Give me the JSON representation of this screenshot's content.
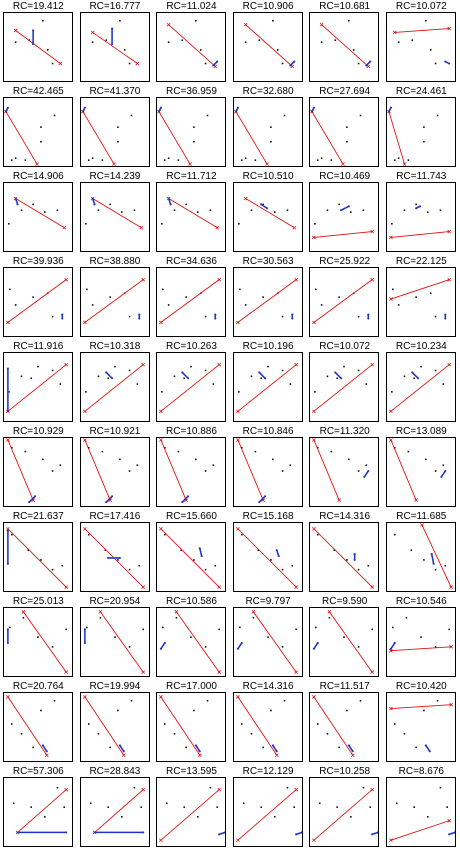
{
  "colors": {
    "fit": "#e01010",
    "residual": "#1e34c8",
    "point": "#000000"
  },
  "rc_values": [
    [
      "RC=19.412",
      "RC=16.777",
      "RC=11.024",
      "RC=10.906",
      "RC=10.681",
      "RC=10.072"
    ],
    [
      "RC=42.465",
      "RC=41.370",
      "RC=36.959",
      "RC=32.680",
      "RC=27.694",
      "RC=24.461"
    ],
    [
      "RC=14.906",
      "RC=14.239",
      "RC=11.712",
      "RC=10.510",
      "RC=10.469",
      "RC=11.743"
    ],
    [
      "RC=39.936",
      "RC=38.880",
      "RC=34.636",
      "RC=30.563",
      "RC=25.922",
      "RC=22.125"
    ],
    [
      "RC=11.916",
      "RC=10.318",
      "RC=10.263",
      "RC=10.196",
      "RC=10.072",
      "RC=10.234"
    ],
    [
      "RC=10.929",
      "RC=10.921",
      "RC=10.886",
      "RC=10.846",
      "RC=11.320",
      "RC=13.089"
    ],
    [
      "RC=21.637",
      "RC=17.416",
      "RC=15.660",
      "RC=15.168",
      "RC=14.316",
      "RC=11.685"
    ],
    [
      "RC=25.013",
      "RC=20.954",
      "RC=10.586",
      "RC=9.797",
      "RC=9.590",
      "RC=10.546"
    ],
    [
      "RC=20.764",
      "RC=19.994",
      "RC=17.000",
      "RC=14.316",
      "RC=11.517",
      "RC=10.420"
    ],
    [
      "RC=57.306",
      "RC=28.843",
      "RC=13.595",
      "RC=12.129",
      "RC=10.258",
      "RC=8.676"
    ]
  ]
}
